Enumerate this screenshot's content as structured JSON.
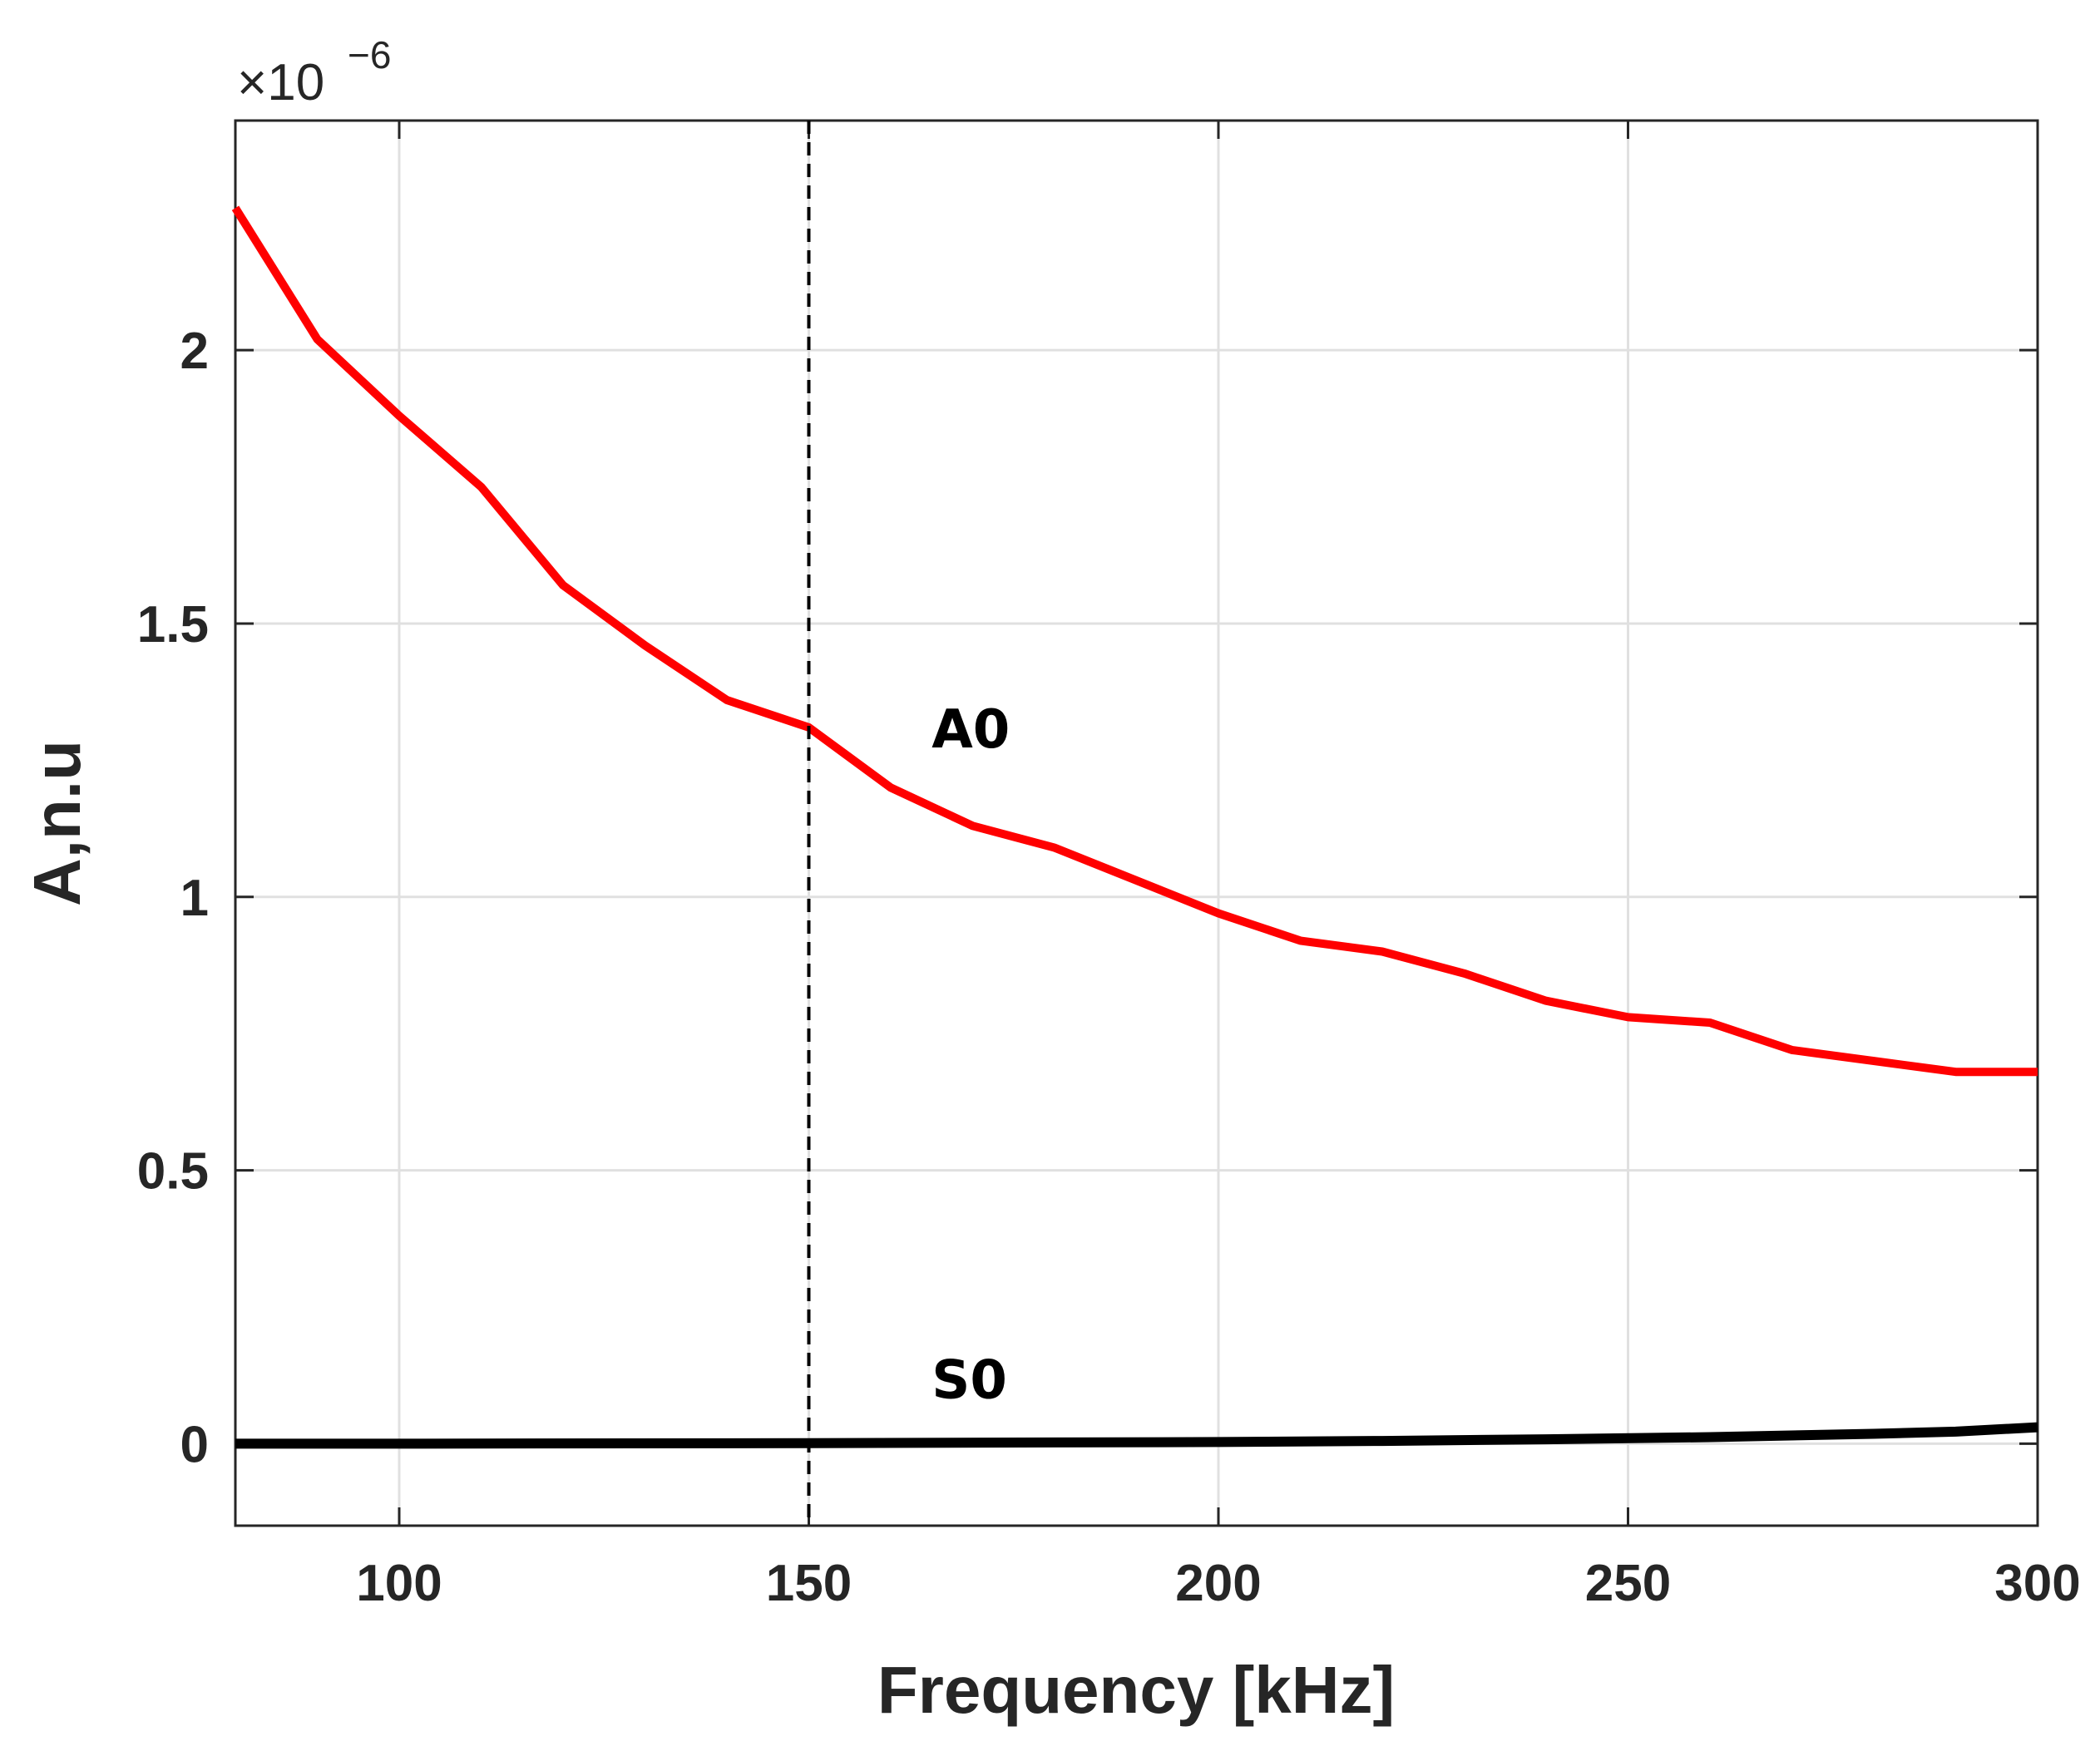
{
  "chart_data": {
    "type": "line",
    "xlabel": "Frequency [kHz]",
    "ylabel": "A,n.u",
    "xlim": [
      80,
      300
    ],
    "ylim": [
      -0.15,
      2.42
    ],
    "y_multiplier": {
      "base": "×10",
      "exponent": "−6"
    },
    "xticks": [
      100,
      150,
      200,
      250,
      300
    ],
    "xtick_labels": [
      "100",
      "150",
      "200",
      "250",
      "300"
    ],
    "yticks": [
      0,
      0.5,
      1,
      1.5,
      2
    ],
    "ytick_labels": [
      "0",
      "0.5",
      "1",
      "1.5",
      "2"
    ],
    "grid": true,
    "series": [
      {
        "name": "A0",
        "color": "#ff0000",
        "x": [
          80,
          90,
          100,
          110,
          120,
          130,
          140,
          150,
          160,
          170,
          180,
          190,
          200,
          210,
          220,
          230,
          240,
          250,
          260,
          270,
          280,
          290,
          300
        ],
        "y": [
          2.26,
          2.02,
          1.88,
          1.75,
          1.57,
          1.46,
          1.36,
          1.31,
          1.2,
          1.13,
          1.09,
          1.03,
          0.97,
          0.92,
          0.9,
          0.86,
          0.81,
          0.78,
          0.77,
          0.72,
          0.7,
          0.68,
          0.68
        ]
      },
      {
        "name": "S0",
        "color": "#000000",
        "x": [
          80,
          100,
          150,
          200,
          220,
          240,
          260,
          280,
          290,
          300
        ],
        "y": [
          0.0,
          0.0,
          0.001,
          0.003,
          0.005,
          0.008,
          0.012,
          0.018,
          0.022,
          0.03
        ]
      }
    ],
    "vline": {
      "x": 150,
      "style": "dashed",
      "color": "#000000"
    },
    "annotations": [
      {
        "text": "A0",
        "x": 165,
        "y": 1.31
      },
      {
        "text": "S0",
        "x": 165,
        "y": 0.12
      }
    ]
  }
}
